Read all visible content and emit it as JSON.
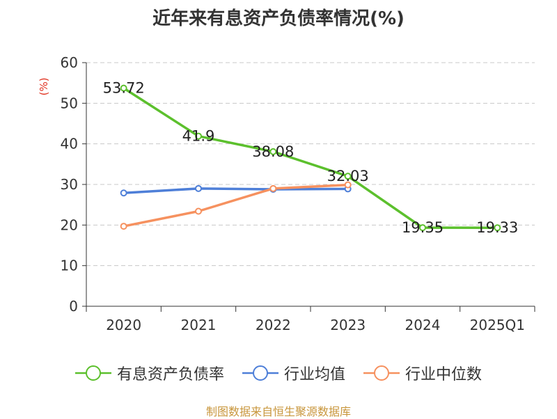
{
  "chart_data": {
    "type": "line",
    "title": "近年来有息资产负债率情况(%)",
    "ylabel": "(%)",
    "xlabel": "",
    "ylim": [
      0,
      60
    ],
    "yticks": [
      0,
      10,
      20,
      30,
      40,
      50,
      60
    ],
    "grid": true,
    "legend_position": "bottom-center",
    "categories": [
      "2020",
      "2021",
      "2022",
      "2023",
      "2024",
      "2025Q1"
    ],
    "series": [
      {
        "name": "有息资产负债率",
        "color": "#5cc02d",
        "values": [
          53.72,
          41.9,
          38.08,
          32.03,
          19.35,
          19.33
        ],
        "labels": [
          "53.72",
          "41.9",
          "38.08",
          "32.03",
          "19.35",
          "19.33"
        ]
      },
      {
        "name": "行业均值",
        "color": "#4e7fd8",
        "values": [
          27.9,
          29.0,
          28.8,
          28.9,
          null,
          null
        ]
      },
      {
        "name": "行业中位数",
        "color": "#f6915f",
        "values": [
          19.7,
          23.4,
          29.0,
          29.9,
          null,
          null
        ]
      }
    ],
    "source": "制图数据来自恒生聚源数据库"
  }
}
